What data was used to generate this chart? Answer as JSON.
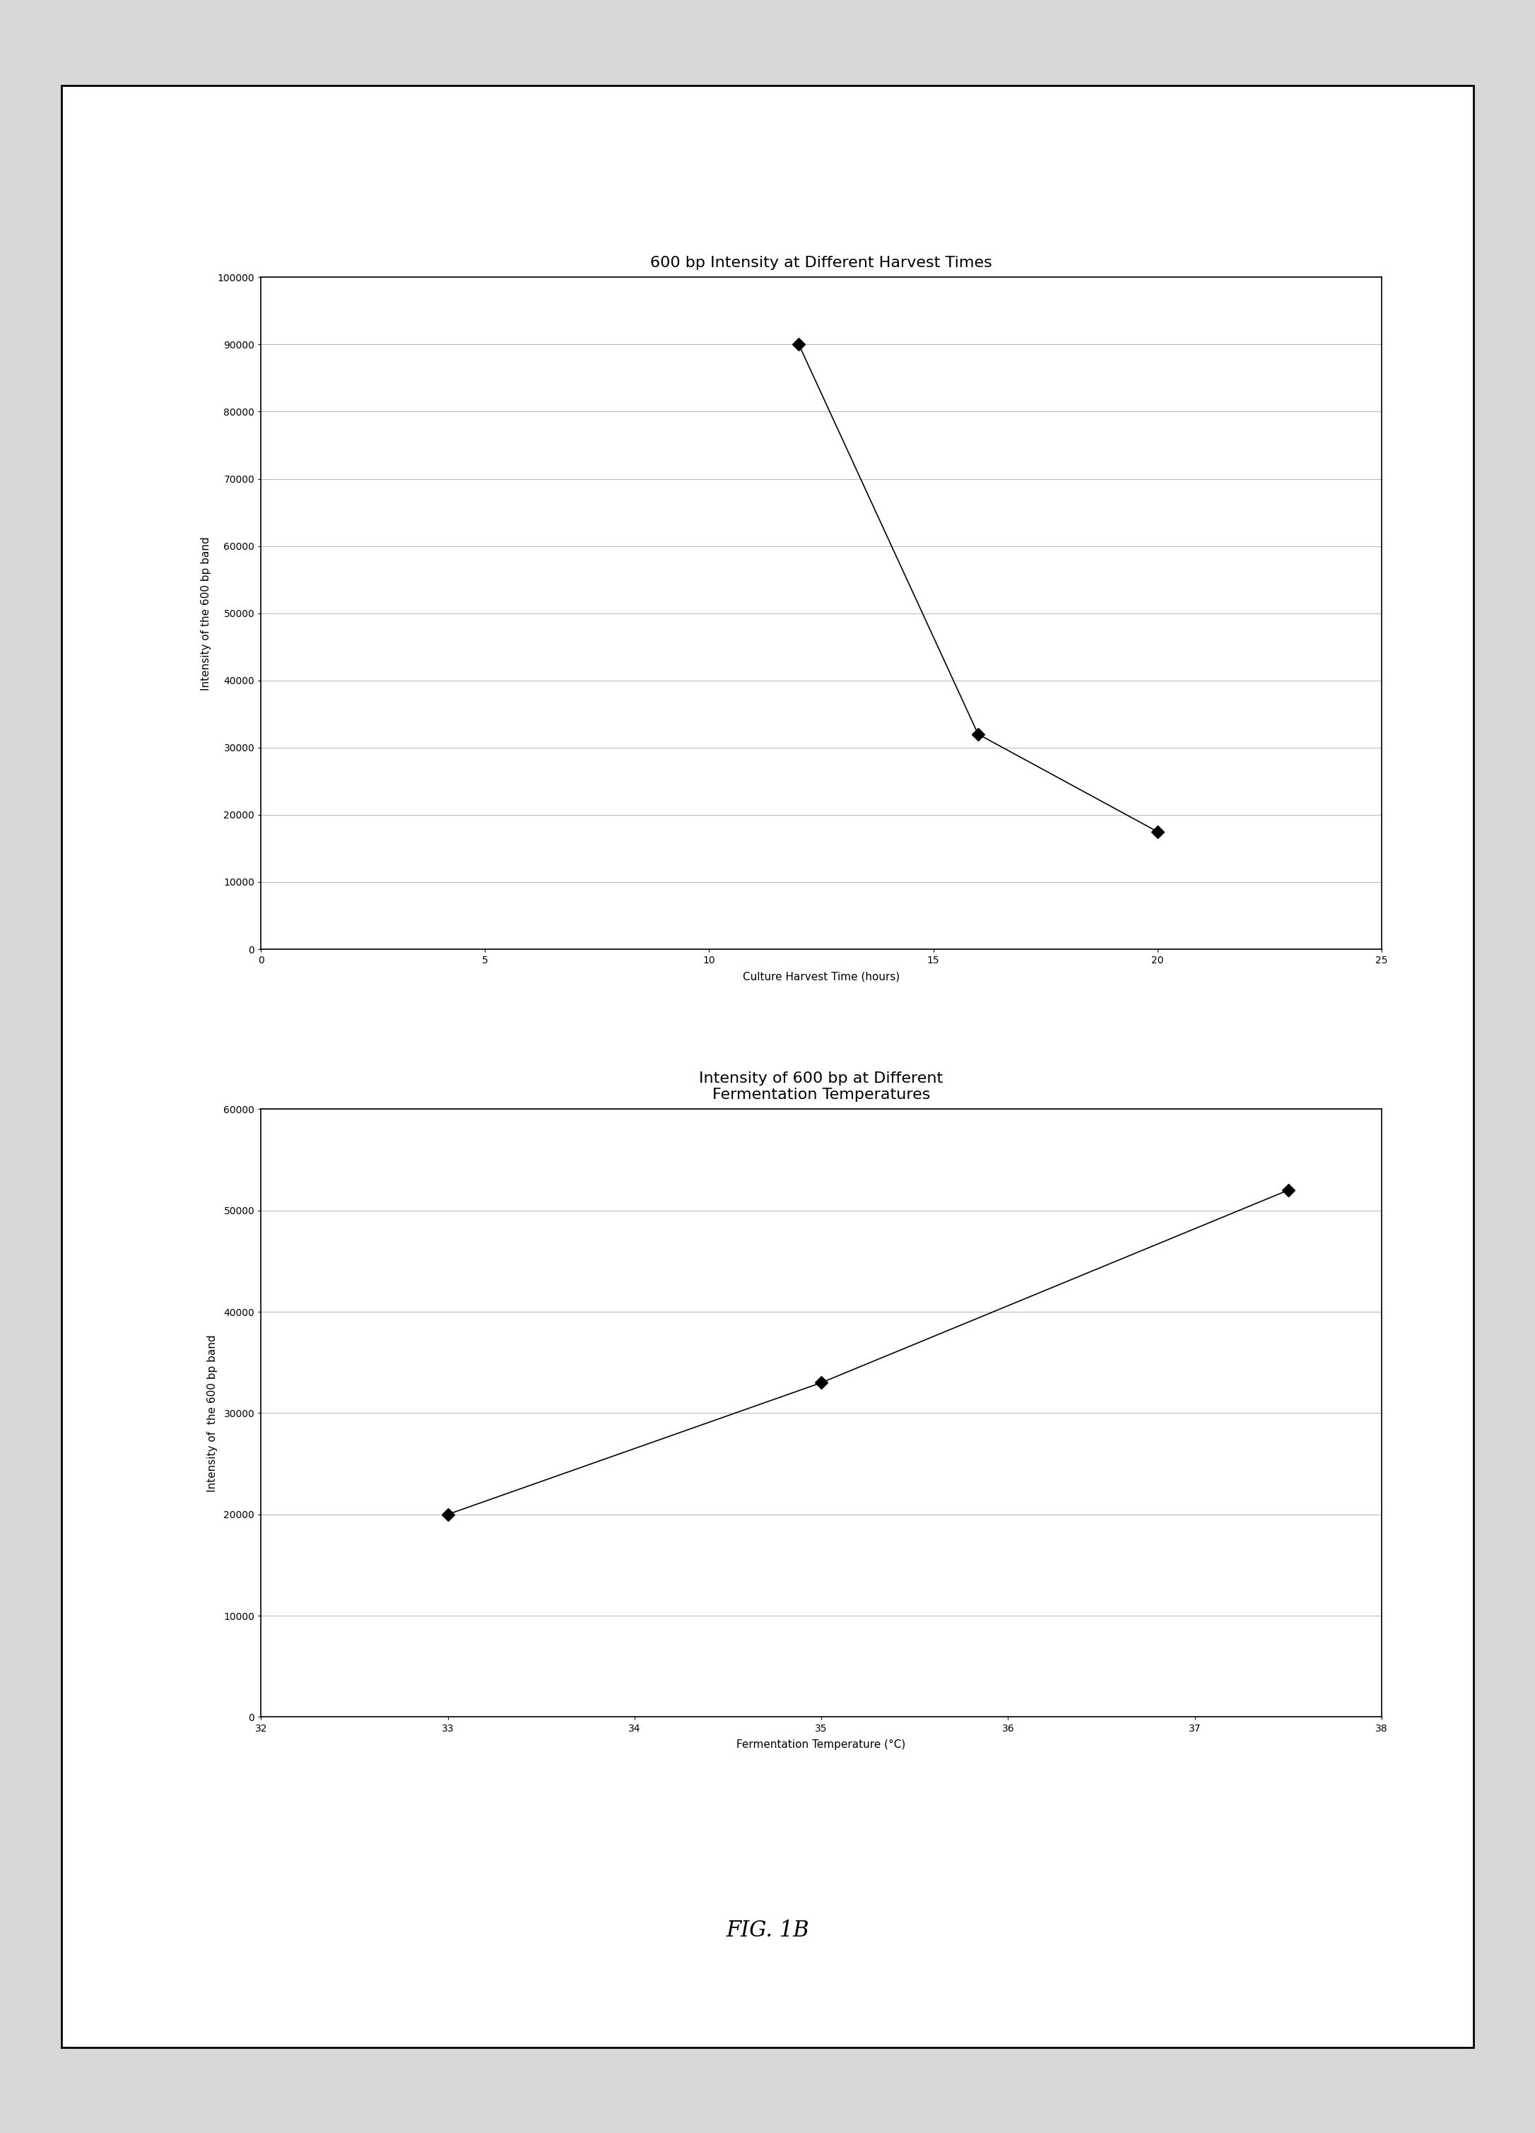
{
  "chart1": {
    "title": "600 bp Intensity at Different Harvest Times",
    "x": [
      12,
      16,
      20
    ],
    "y": [
      90000,
      32000,
      17500
    ],
    "xlabel": "Culture Harvest Time (hours)",
    "ylabel": "Intensity of the 600 bp band",
    "xlim": [
      0,
      25
    ],
    "ylim": [
      0,
      100000
    ],
    "xticks": [
      0,
      5,
      10,
      15,
      20,
      25
    ],
    "yticks": [
      0,
      10000,
      20000,
      30000,
      40000,
      50000,
      60000,
      70000,
      80000,
      90000,
      100000
    ]
  },
  "chart2": {
    "title": "Intensity of 600 bp at Different\nFermentation Temperatures",
    "x": [
      33,
      35,
      37.5
    ],
    "y": [
      20000,
      33000,
      52000
    ],
    "xlabel": "Fermentation Temperature (°C)",
    "ylabel": "Intensity of  the 600 bp band",
    "xlim": [
      32,
      38
    ],
    "ylim": [
      0,
      60000
    ],
    "xticks": [
      32,
      33,
      34,
      35,
      36,
      37,
      38
    ],
    "yticks": [
      0,
      10000,
      20000,
      30000,
      40000,
      50000,
      60000
    ]
  },
  "fig_label": "FIG. 1B",
  "marker": "D",
  "marker_color": "#000000",
  "line_color": "#000000",
  "outer_bg": "#d8d8d8",
  "inner_bg": "#ffffff",
  "border_color": "#000000",
  "title_fontsize": 16,
  "label_fontsize": 11,
  "tick_fontsize": 10,
  "figlabel_fontsize": 22,
  "grid_color": "#aaaaaa",
  "grid_linewidth": 0.6,
  "spine_linewidth": 1.2,
  "line_linewidth": 1.2,
  "markersize": 9
}
